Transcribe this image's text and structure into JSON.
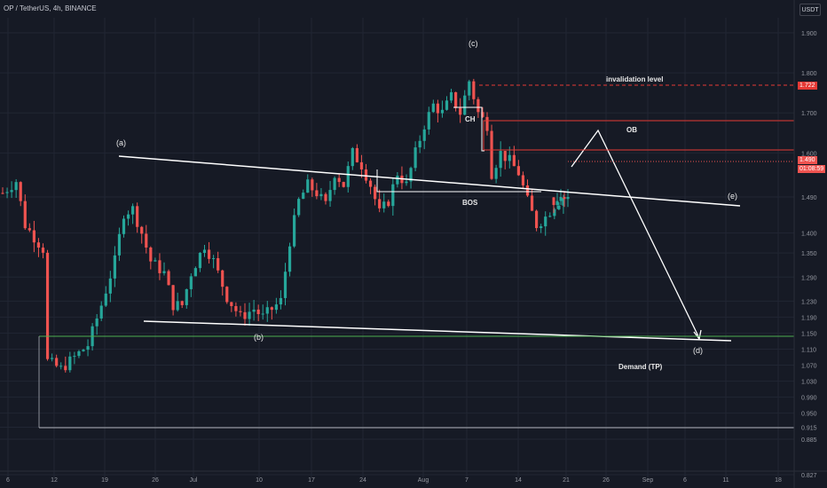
{
  "header": {
    "title": "OP / TetherUS, 4h, BINANCE",
    "currency": "USDT"
  },
  "colors": {
    "background": "#161a25",
    "up": "#26a69a",
    "down": "#ef5350",
    "annotation": "#ffffff",
    "red_box": "#e53935",
    "demand": "#4caf50"
  },
  "chart_data": {
    "type": "candlestick",
    "symbol": "OP / TetherUS",
    "timeframe": "4h",
    "exchange": "BINANCE",
    "y_ticks": [
      "1.900",
      "1.800",
      "1.700",
      "1.600",
      "1.490",
      "1.400",
      "1.350",
      "1.290",
      "1.230",
      "1.190",
      "1.150",
      "1.110",
      "1.070",
      "1.030",
      "0.990",
      "0.950",
      "0.915",
      "0.885",
      "0.827"
    ],
    "x_ticks": [
      "6",
      "12",
      "19",
      "26",
      "Jul",
      "10",
      "17",
      "24",
      "Aug",
      "7",
      "14",
      "21",
      "26",
      "Sep",
      "6",
      "11",
      "18"
    ],
    "ylim": [
      0.827,
      1.93
    ],
    "current_price": "1.490",
    "countdown": "01:08:59",
    "invalidation_price": "1.722",
    "close_path": [
      [
        0,
        1.5
      ],
      [
        3,
        1.53
      ],
      [
        5,
        1.42
      ],
      [
        9,
        1.36
      ],
      [
        10,
        1.08
      ],
      [
        13,
        1.06
      ],
      [
        16,
        1.09
      ],
      [
        19,
        1.12
      ],
      [
        22,
        1.22
      ],
      [
        25,
        1.33
      ],
      [
        27,
        1.45
      ],
      [
        29,
        1.46
      ],
      [
        31,
        1.4
      ],
      [
        33,
        1.33
      ],
      [
        36,
        1.3
      ],
      [
        38,
        1.22
      ],
      [
        40,
        1.22
      ],
      [
        42,
        1.3
      ],
      [
        45,
        1.37
      ],
      [
        47,
        1.33
      ],
      [
        50,
        1.24
      ],
      [
        53,
        1.19
      ],
      [
        56,
        1.21
      ],
      [
        58,
        1.19
      ],
      [
        60,
        1.21
      ],
      [
        62,
        1.23
      ],
      [
        64,
        1.38
      ],
      [
        66,
        1.48
      ],
      [
        68,
        1.52
      ],
      [
        70,
        1.5
      ],
      [
        72,
        1.47
      ],
      [
        74,
        1.55
      ],
      [
        76,
        1.52
      ],
      [
        78,
        1.6
      ],
      [
        80,
        1.57
      ],
      [
        82,
        1.52
      ],
      [
        84,
        1.45
      ],
      [
        86,
        1.48
      ],
      [
        88,
        1.55
      ],
      [
        90,
        1.52
      ],
      [
        92,
        1.6
      ],
      [
        94,
        1.67
      ],
      [
        96,
        1.72
      ],
      [
        98,
        1.7
      ],
      [
        100,
        1.74
      ],
      [
        102,
        1.7
      ],
      [
        104,
        1.78
      ],
      [
        106,
        1.7
      ],
      [
        108,
        1.67
      ],
      [
        109,
        1.55
      ],
      [
        111,
        1.6
      ],
      [
        113,
        1.58
      ],
      [
        115,
        1.55
      ],
      [
        117,
        1.48
      ],
      [
        119,
        1.42
      ],
      [
        121,
        1.44
      ],
      [
        123,
        1.47
      ],
      [
        125,
        1.49
      ],
      [
        126,
        1.49
      ]
    ],
    "last_closes": [
      1.47,
      1.48,
      1.49,
      1.485,
      1.49
    ],
    "wave_labels": [
      "(a)",
      "(b)",
      "(c)",
      "(d)",
      "(e)"
    ],
    "annotations": [
      "invalidation level",
      "CH",
      "OB",
      "BOS",
      "Demand (TP)"
    ]
  }
}
